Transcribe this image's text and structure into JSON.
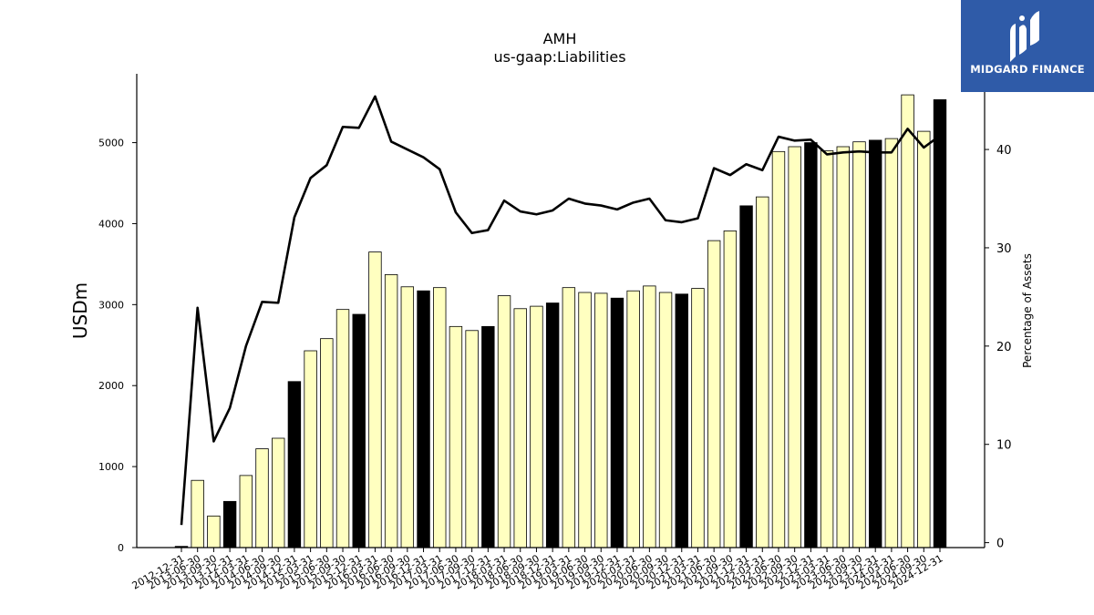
{
  "chart_data": {
    "type": "bar",
    "title": "AMH",
    "subtitle": "us-gaap:Liabilities",
    "ylabel": "USDm",
    "y2label": "Percentage of Assets",
    "ylim": [
      0,
      5850
    ],
    "y2lim": [
      -0.5,
      47.7
    ],
    "yticks": [
      0,
      1000,
      2000,
      3000,
      4000,
      5000
    ],
    "y2ticks": [
      0,
      10,
      20,
      30,
      40
    ],
    "categories": [
      "2012-12-31",
      "2013-06-30",
      "2013-09-30",
      "2013-12-31",
      "2014-03-31",
      "2014-06-30",
      "2014-09-30",
      "2014-12-31",
      "2015-03-31",
      "2015-06-30",
      "2015-09-30",
      "2015-12-31",
      "2016-03-31",
      "2016-06-30",
      "2016-09-30",
      "2016-12-31",
      "2017-03-31",
      "2017-06-30",
      "2017-09-30",
      "2017-12-31",
      "2018-03-31",
      "2018-06-30",
      "2018-09-30",
      "2018-12-31",
      "2019-03-31",
      "2019-06-30",
      "2019-09-30",
      "2019-12-31",
      "2020-03-31",
      "2020-06-30",
      "2020-09-30",
      "2020-12-31",
      "2021-03-31",
      "2021-06-30",
      "2021-09-30",
      "2021-12-31",
      "2022-03-31",
      "2022-06-30",
      "2022-09-30",
      "2022-12-31",
      "2023-03-31",
      "2023-06-30",
      "2023-09-30",
      "2023-12-31",
      "2024-03-31",
      "2024-06-30",
      "2024-09-30",
      "2024-12-31"
    ],
    "series": [
      {
        "type": "bar",
        "values": [
          15,
          830,
          390,
          570,
          890,
          1220,
          1350,
          2050,
          2430,
          2580,
          2940,
          2880,
          3650,
          3370,
          3220,
          3170,
          3210,
          2730,
          2680,
          2730,
          3110,
          2950,
          2980,
          3020,
          3210,
          3150,
          3140,
          3080,
          3170,
          3230,
          3150,
          3130,
          3200,
          3790,
          3910,
          4220,
          4330,
          4890,
          4950,
          5000,
          4900,
          4950,
          5010,
          5030,
          5050,
          5590,
          5140,
          5530
        ],
        "fill_type": [
          "q4",
          "q2",
          "q3",
          "q4",
          "q1",
          "q2",
          "q3",
          "q4",
          "q1",
          "q2",
          "q3",
          "q4",
          "q1",
          "q2",
          "q3",
          "q4",
          "q1",
          "q2",
          "q3",
          "q4",
          "q1",
          "q2",
          "q3",
          "q4",
          "q1",
          "q2",
          "q3",
          "q4",
          "q1",
          "q2",
          "q3",
          "q4",
          "q1",
          "q2",
          "q3",
          "q4",
          "q1",
          "q2",
          "q3",
          "q4",
          "q1",
          "q2",
          "q3",
          "q4",
          "q1",
          "q2",
          "q3",
          "q4"
        ]
      },
      {
        "type": "line",
        "axis": "right",
        "values": [
          1.8,
          23.9,
          10.3,
          13.7,
          20.0,
          24.5,
          24.4,
          33.1,
          37.1,
          38.4,
          42.3,
          42.2,
          45.4,
          40.8,
          40.0,
          39.2,
          38.0,
          33.6,
          31.5,
          31.8,
          34.8,
          33.7,
          33.4,
          33.8,
          35.0,
          34.5,
          34.3,
          33.9,
          34.6,
          35.0,
          32.8,
          32.6,
          33.0,
          38.1,
          37.4,
          38.5,
          37.9,
          41.3,
          40.9,
          41.0,
          39.5,
          39.7,
          39.8,
          39.7,
          39.7,
          42.1,
          40.2,
          41.4
        ]
      }
    ],
    "colors": {
      "q4": "#000000",
      "other": "#ffffc0",
      "line": "#000000"
    },
    "grid": false,
    "legend": "none"
  },
  "logo": {
    "name": "MIDGARD FINANCE",
    "icon": "midgard-logo-icon",
    "background": "#2f5ba8"
  }
}
